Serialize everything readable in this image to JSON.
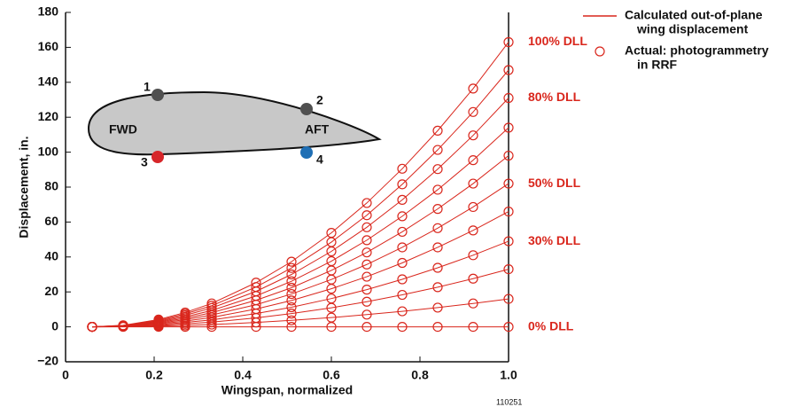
{
  "chart_data": {
    "type": "line",
    "xlabel": "Wingspan, normalized",
    "ylabel": "Displacement, in.",
    "x": [
      0.06,
      0.13,
      0.21,
      0.27,
      0.33,
      0.43,
      0.51,
      0.6,
      0.68,
      0.76,
      0.84,
      0.92,
      1.0
    ],
    "series": [
      {
        "color": "#d9261c",
        "label": "0% DLL",
        "values": [
          0,
          0,
          0,
          0,
          0,
          0,
          0,
          0,
          0,
          0,
          0,
          0,
          0
        ]
      },
      {
        "color": "#d9261c",
        "values": [
          0,
          0.1,
          0.4,
          0.8,
          1.3,
          2.5,
          3.7,
          5.3,
          7,
          8.9,
          11,
          13.4,
          16
        ]
      },
      {
        "color": "#d9261c",
        "values": [
          0,
          0.2,
          0.8,
          1.7,
          2.7,
          5.1,
          7.6,
          10.9,
          14.4,
          18.3,
          22.7,
          27.6,
          33
        ]
      },
      {
        "color": "#d9261c",
        "label": "30% DLL",
        "values": [
          0,
          0.3,
          1.2,
          2.5,
          4,
          7.6,
          11.2,
          16.2,
          21.3,
          27.2,
          33.8,
          41,
          49
        ]
      },
      {
        "color": "#d9261c",
        "values": [
          0,
          0.4,
          1.7,
          3.3,
          5.4,
          10.2,
          15.1,
          21.8,
          28.7,
          36.6,
          45.5,
          55.2,
          66
        ]
      },
      {
        "color": "#d9261c",
        "label": "50% DLL",
        "values": [
          0,
          0.5,
          2.1,
          4.1,
          6.8,
          12.7,
          18.8,
          27.1,
          35.7,
          45.5,
          56.5,
          68.6,
          82
        ]
      },
      {
        "color": "#d9261c",
        "values": [
          0,
          0.5,
          2.5,
          4.9,
          8.1,
          15.2,
          22.4,
          32.3,
          42.6,
          54.4,
          67.5,
          82,
          98
        ]
      },
      {
        "color": "#d9261c",
        "values": [
          0,
          0.6,
          2.9,
          5.7,
          9.4,
          17.7,
          26.1,
          37.6,
          49.6,
          63.3,
          78.5,
          95.4,
          114
        ]
      },
      {
        "color": "#d9261c",
        "label": "80% DLL",
        "values": [
          0,
          0.7,
          3.3,
          6.6,
          10.8,
          20.3,
          30,
          43.2,
          57,
          72.7,
          90.3,
          109.6,
          131
        ]
      },
      {
        "color": "#d9261c",
        "values": [
          0,
          0.8,
          3.7,
          7.4,
          12.1,
          22.8,
          33.7,
          48.5,
          63.9,
          81.6,
          101.3,
          123,
          147
        ]
      },
      {
        "color": "#d9261c",
        "label": "100% DLL",
        "values": [
          0,
          0.9,
          4.2,
          8.2,
          13.4,
          25.3,
          37.3,
          53.8,
          70.9,
          90.5,
          112.3,
          136.4,
          163
        ]
      }
    ],
    "xlim": [
      0,
      1.0
    ],
    "xticks": [
      0,
      0.2,
      0.4,
      0.6,
      0.8,
      {
        "value": 1.0,
        "label": "1.0"
      }
    ],
    "ylim": [
      -20,
      180
    ],
    "yticks": [
      {
        "value": -20,
        "label": "−20"
      },
      0,
      20,
      40,
      60,
      80,
      100,
      120,
      140,
      160,
      180
    ],
    "legend": [
      {
        "marker": "line",
        "label_lines": [
          "Calculated out-of-plane",
          "wing displacement"
        ]
      },
      {
        "marker": "circle",
        "label_lines": [
          "Actual: photogrammetry",
          "in RRF"
        ]
      }
    ],
    "inset": {
      "labels": [
        "1",
        "2",
        "3",
        "4",
        "FWD",
        "AFT"
      ]
    },
    "footnote": "110251"
  }
}
